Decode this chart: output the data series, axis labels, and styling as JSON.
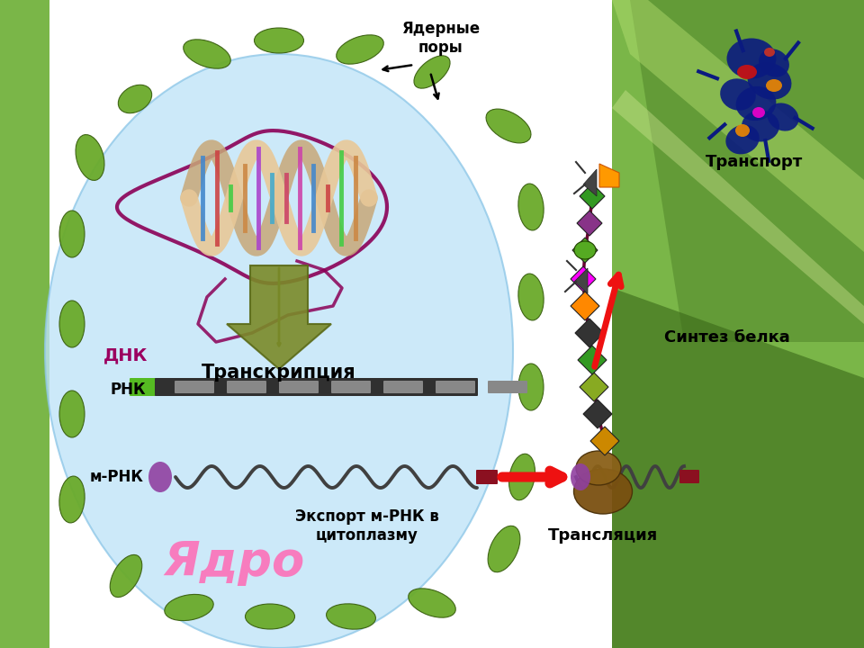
{
  "labels": {
    "yadernye_pory": "Ядерные\nпоры",
    "dnk": "ДНК",
    "transkriptsiya": "Транскрипция",
    "rnk": "РНК",
    "m_rnk": "м-РНК",
    "yadro": "Ядро",
    "eksport": "Экспорт м-РНК в\nцитоплазму",
    "translyatsiya": "Трансляция",
    "sintez_belka": "Синтез белка",
    "transport": "Транспорт"
  },
  "green_light": "#7ab648",
  "green_mid": "#5a9030",
  "green_dark": "#3a6818",
  "nucleus_color": "#c0e4f8",
  "membrane_color": "#6aaa2a"
}
